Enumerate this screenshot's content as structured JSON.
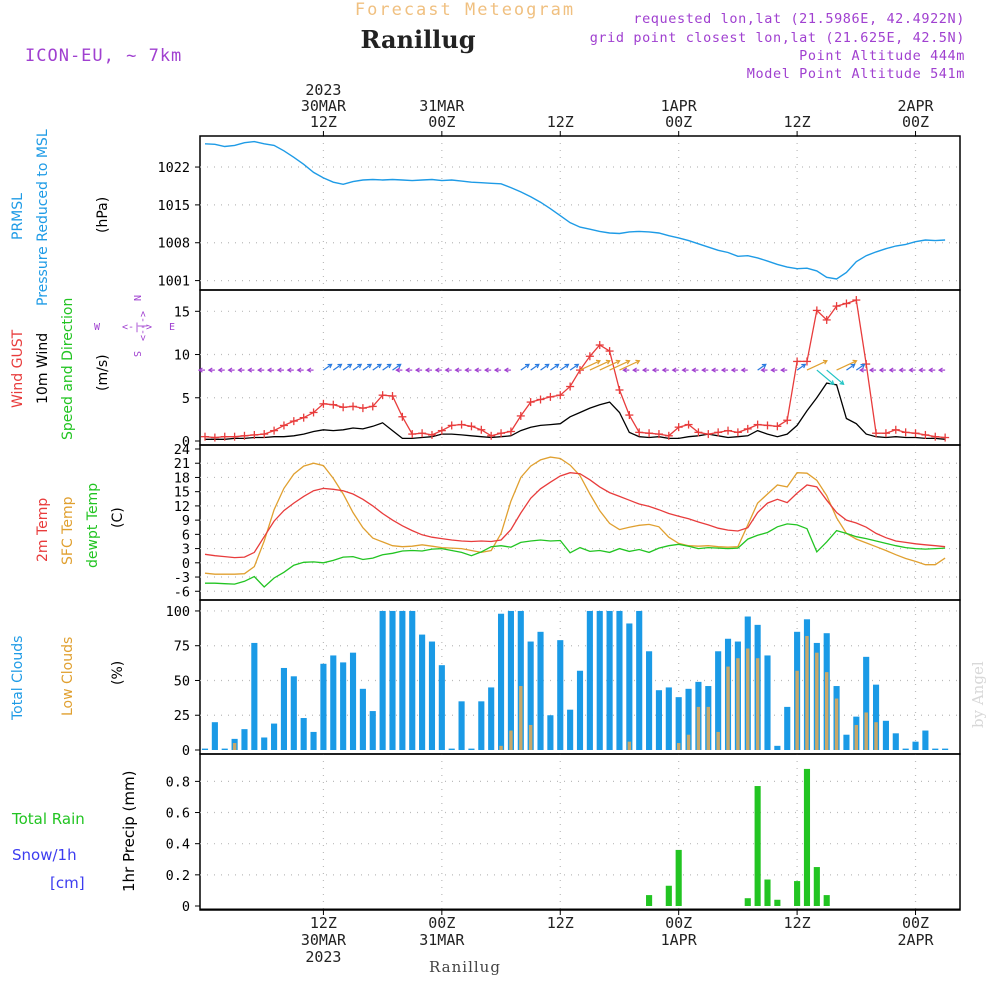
{
  "header": {
    "app_title": "Forecast Meteogram",
    "location": "Ranillug",
    "model": "ICON-EU, ~ 7km",
    "requested": "requested lon,lat (21.5986E, 42.4922N)",
    "grid_point": "grid point closest lon,lat (21.625E, 42.5N)",
    "point_altitude": "Point Altitude 444m",
    "model_altitude": "Model Point Altitude 541m",
    "watermark": "by Angel",
    "footer_location": "Ranillug"
  },
  "time_axis": {
    "top_labels": [
      {
        "t": 12,
        "lines": [
          "2023",
          "30MAR",
          "12Z"
        ]
      },
      {
        "t": 24,
        "lines": [
          "31MAR",
          "00Z"
        ]
      },
      {
        "t": 36,
        "lines": [
          "12Z"
        ]
      },
      {
        "t": 48,
        "lines": [
          "1APR",
          "00Z"
        ]
      },
      {
        "t": 60,
        "lines": [
          "12Z"
        ]
      },
      {
        "t": 72,
        "lines": [
          "2APR",
          "00Z"
        ]
      }
    ],
    "bottom_labels": [
      {
        "t": 12,
        "lines": [
          "12Z",
          "30MAR",
          "2023"
        ]
      },
      {
        "t": 24,
        "lines": [
          "00Z",
          "31MAR"
        ]
      },
      {
        "t": 36,
        "lines": [
          "12Z"
        ]
      },
      {
        "t": 48,
        "lines": [
          "00Z",
          "1APR"
        ]
      },
      {
        "t": 60,
        "lines": [
          "12Z"
        ]
      },
      {
        "t": 72,
        "lines": [
          "00Z",
          "2APR"
        ]
      }
    ]
  },
  "panels": {
    "pressure": {
      "label_main": "PRMSL",
      "label_sub": "Pressure Reduced to MSL",
      "unit": "(hPa)",
      "ticks": [
        "1001",
        "1008",
        "1015",
        "1022"
      ]
    },
    "wind": {
      "label_gust": "Wind GUST",
      "label_wind": "10m Wind",
      "label_dir": "Speed and Direction",
      "unit": "(m/s)",
      "compass_n": "N",
      "compass_e": "E",
      "compass_s": "S",
      "compass_w": "W",
      "ticks": [
        "0",
        "5",
        "10",
        "15"
      ]
    },
    "temp": {
      "label_2m": "2m Temp",
      "label_sfc": "SFC Temp",
      "label_dew": "dewpt Temp",
      "unit": "(C)",
      "ticks": [
        "-6",
        "-3",
        "0",
        "3",
        "6",
        "9",
        "12",
        "15",
        "18",
        "21",
        "24"
      ]
    },
    "clouds": {
      "label_total": "Total Clouds",
      "label_low": "Low Clouds",
      "unit": "(%)",
      "ticks": [
        "0",
        "25",
        "50",
        "75",
        "100"
      ]
    },
    "precip": {
      "label_rain": "Total   Rain",
      "label_snow": "Snow/1h",
      "label_snow_unit": "[cm]",
      "label_axis": "1hr Precip (mm)",
      "ticks": [
        "0",
        "0.2",
        "0.4",
        "0.6",
        "0.8"
      ]
    }
  },
  "colors": {
    "pressure": "#1e9be6",
    "gust": "#e83c3c",
    "wind": "#000000",
    "temp2m": "#e83c3c",
    "sfc": "#e0a030",
    "dew": "#22c422",
    "total_clouds": "#1a9ae6",
    "low_clouds": "#c8a86a",
    "rain": "#22c422",
    "snow": "#3c3cf0",
    "purple": "#a040d0",
    "title_orange": "#f0c080"
  },
  "chart_data": {
    "type": "line",
    "x_unit": "hours since 30MAR 00Z",
    "x": [
      0,
      1,
      2,
      3,
      4,
      5,
      6,
      7,
      8,
      9,
      10,
      11,
      12,
      13,
      14,
      15,
      16,
      17,
      18,
      19,
      20,
      21,
      22,
      23,
      24,
      25,
      26,
      27,
      28,
      29,
      30,
      31,
      32,
      33,
      34,
      35,
      36,
      37,
      38,
      39,
      40,
      41,
      42,
      43,
      44,
      45,
      46,
      47,
      48,
      49,
      50,
      51,
      52,
      53,
      54,
      55,
      56,
      57,
      58,
      59,
      60,
      61,
      62,
      63,
      64,
      65,
      66,
      67,
      68,
      69,
      70,
      71,
      72,
      73,
      74,
      75
    ],
    "xlim": [
      0,
      76
    ],
    "pressure": {
      "ylim": [
        1000,
        1027
      ],
      "values": [
        1026.3,
        1026.2,
        1025.8,
        1026,
        1026.5,
        1026.7,
        1026.3,
        1026,
        1025,
        1023.8,
        1022.5,
        1021,
        1020,
        1019.2,
        1018.8,
        1019.3,
        1019.6,
        1019.7,
        1019.6,
        1019.7,
        1019.6,
        1019.5,
        1019.6,
        1019.7,
        1019.5,
        1019.6,
        1019.4,
        1019.2,
        1019.1,
        1019,
        1018.9,
        1018.2,
        1017.4,
        1016.5,
        1015.5,
        1014.3,
        1013,
        1011.7,
        1010.9,
        1010.5,
        1010.1,
        1009.8,
        1009.7,
        1010,
        1010.1,
        1010,
        1009.8,
        1009.3,
        1008.9,
        1008.4,
        1007.8,
        1007.2,
        1006.6,
        1006.2,
        1005.5,
        1005.6,
        1005.2,
        1004.6,
        1004,
        1003.5,
        1003.2,
        1003.3,
        1002.8,
        1001.6,
        1001.3,
        1002.5,
        1004.5,
        1005.6,
        1006.3,
        1006.9,
        1007.4,
        1007.7,
        1008.2,
        1008.5,
        1008.4,
        1008.5
      ],
      "gridlines": [
        1001,
        1008,
        1015,
        1022
      ]
    },
    "wind_speed": {
      "ylim": [
        0,
        17
      ],
      "values": [
        0.2,
        0.2,
        0.2,
        0.3,
        0.3,
        0.4,
        0.4,
        0.5,
        0.5,
        0.6,
        0.8,
        1.1,
        1.3,
        1.2,
        1.3,
        1.5,
        1.4,
        1.7,
        2.1,
        1.2,
        0.3,
        0.3,
        0.4,
        0.5,
        0.8,
        0.8,
        0.7,
        0.6,
        0.5,
        0.4,
        0.5,
        0.6,
        1.2,
        1.6,
        1.8,
        1.9,
        2.0,
        2.8,
        3.3,
        3.8,
        4.2,
        4.5,
        3.3,
        1.0,
        0.5,
        0.4,
        0.5,
        0.3,
        0.3,
        0.5,
        0.6,
        0.8,
        0.6,
        0.4,
        0.5,
        0.6,
        1.2,
        0.8,
        0.5,
        0.8,
        1.8,
        3.5,
        5.0,
        6.7,
        6.5,
        2.6,
        2.0,
        0.8,
        0.5,
        0.4,
        0.5,
        0.4,
        0.4,
        0.3,
        0.3,
        0.2
      ]
    },
    "gust": {
      "values": [
        0.5,
        0.4,
        0.5,
        0.5,
        0.6,
        0.7,
        0.8,
        1.2,
        1.8,
        2.3,
        2.7,
        3.3,
        4.3,
        4.2,
        3.9,
        4.0,
        3.8,
        4.0,
        5.3,
        5.2,
        2.8,
        0.8,
        0.9,
        0.7,
        1.2,
        1.8,
        1.9,
        1.7,
        1.3,
        0.6,
        0.9,
        1.1,
        2.9,
        4.5,
        4.8,
        5.1,
        5.3,
        6.3,
        8.2,
        9.8,
        11.1,
        10.4,
        5.9,
        3.0,
        1.0,
        0.9,
        0.8,
        0.6,
        1.6,
        1.9,
        1.0,
        0.8,
        1.0,
        1.2,
        1.0,
        1.4,
        1.9,
        1.8,
        1.7,
        2.4,
        9.2,
        9.2,
        15.1,
        14.0,
        15.6,
        15.9,
        16.3,
        8.9,
        0.9,
        0.9,
        1.3,
        1.0,
        0.9,
        0.7,
        0.5,
        0.4
      ]
    },
    "wind_dir_row": {
      "y": 8.2,
      "note": "wind direction arrows"
    },
    "temperature": {
      "ylim": [
        -7,
        24
      ],
      "t2m": [
        1.8,
        1.5,
        1.3,
        1.1,
        1.2,
        2.2,
        5.5,
        8.8,
        11,
        12.6,
        14,
        15.2,
        15.7,
        15.5,
        15.2,
        14.5,
        13.4,
        12,
        10.4,
        9,
        7.8,
        6.8,
        5.9,
        5.4,
        5.1,
        4.8,
        4.6,
        4.5,
        4.6,
        4.5,
        4.8,
        7.0,
        10.5,
        13.6,
        15.6,
        17,
        18.3,
        19,
        18.8,
        17.5,
        16,
        14.8,
        14,
        13.2,
        12.4,
        11.9,
        11.2,
        10.4,
        9.8,
        9.3,
        8.6,
        8.0,
        7.3,
        6.9,
        6.7,
        7.4,
        10.6,
        12.6,
        13.4,
        12.7,
        14.7,
        16.4,
        16,
        13.2,
        10.6,
        9.0,
        8.4,
        7.5,
        6.2,
        5.3,
        4.6,
        4.3,
        4.0,
        3.8,
        3.6,
        3.4
      ],
      "sfc": [
        -2.2,
        -2.4,
        -2.4,
        -2.4,
        -2.3,
        -0.8,
        4.6,
        11.2,
        15.7,
        18.7,
        20.4,
        21.0,
        20.5,
        17.8,
        14.5,
        10.6,
        7.4,
        5.2,
        4.4,
        3.6,
        3.4,
        3.5,
        3.8,
        3.5,
        3.2,
        3.1,
        3.0,
        2.6,
        2.2,
        2.6,
        6.2,
        13.0,
        18.0,
        20.4,
        21.7,
        22.3,
        22.0,
        20.6,
        18.4,
        14.5,
        11.0,
        8.3,
        7.0,
        7.5,
        7.9,
        8.1,
        7.6,
        5.4,
        4.1,
        3.6,
        3.5,
        3.6,
        3.4,
        3.3,
        3.4,
        8.0,
        12.6,
        14.5,
        16.4,
        16.0,
        19.0,
        18.9,
        17.4,
        14.2,
        9.5,
        6.2,
        5.0,
        4.2,
        3.4,
        2.6,
        1.7,
        0.9,
        0.3,
        -0.4,
        -0.4,
        1.0
      ],
      "dew": [
        -4.3,
        -4.3,
        -4.4,
        -4.5,
        -3.9,
        -2.9,
        -5.1,
        -3.2,
        -2.0,
        -0.5,
        0.1,
        0.2,
        0.0,
        0.5,
        1.2,
        1.3,
        0.7,
        1.0,
        1.7,
        2.0,
        2.5,
        2.6,
        2.5,
        2.9,
        3.0,
        2.6,
        2.2,
        1.5,
        2.3,
        3.4,
        3.6,
        3.3,
        4.3,
        4.6,
        4.8,
        4.6,
        4.7,
        2.1,
        3.2,
        2.4,
        2.6,
        2.2,
        3.0,
        2.4,
        2.8,
        2.2,
        3.1,
        3.6,
        3.9,
        3.5,
        3.0,
        3.2,
        3.1,
        3.0,
        3.1,
        5.0,
        5.8,
        6.4,
        7.6,
        8.2,
        8.0,
        7.2,
        2.3,
        4.4,
        6.8,
        6.2,
        5.5,
        5.1,
        4.6,
        4.1,
        3.6,
        3.2,
        3.0,
        2.9,
        3.0,
        3.1
      ]
    },
    "clouds": {
      "ylim": [
        0,
        105
      ],
      "total": [
        1,
        20,
        1,
        8,
        15,
        77,
        9,
        19,
        59,
        53,
        23,
        13,
        62,
        68,
        63,
        70,
        44,
        28,
        100,
        100,
        100,
        100,
        83,
        78,
        61,
        1,
        35,
        1,
        35,
        45,
        98,
        100,
        100,
        78,
        85,
        25,
        79,
        29,
        57,
        100,
        100,
        100,
        100,
        91,
        100,
        71,
        43,
        45,
        38,
        44,
        49,
        46,
        71,
        80,
        78,
        96,
        90,
        68,
        3,
        31,
        85,
        94,
        77,
        84,
        46,
        11,
        24,
        67,
        47,
        21,
        12,
        1,
        6,
        14,
        1,
        1
      ],
      "low": [
        0,
        0,
        0,
        5,
        0,
        0,
        0,
        0,
        0,
        0,
        0,
        0,
        0,
        0,
        0,
        0,
        0,
        0,
        0,
        0,
        0,
        0,
        0,
        0,
        0,
        0,
        0,
        0,
        0,
        0,
        3,
        14,
        46,
        18,
        0,
        0,
        0,
        0,
        0,
        0,
        0,
        0,
        0,
        6,
        0,
        0,
        0,
        0,
        5,
        11,
        31,
        31,
        13,
        60,
        66,
        73,
        66,
        0,
        0,
        0,
        57,
        82,
        70,
        56,
        37,
        0,
        18,
        27,
        20,
        0,
        0,
        0,
        0,
        0,
        0,
        0
      ]
    },
    "precip": {
      "ylim": [
        0,
        0.95
      ],
      "rain": [
        0,
        0,
        0,
        0,
        0,
        0,
        0,
        0,
        0,
        0,
        0,
        0,
        0,
        0,
        0,
        0,
        0,
        0,
        0,
        0,
        0,
        0,
        0,
        0,
        0,
        0,
        0,
        0,
        0,
        0,
        0,
        0,
        0,
        0,
        0,
        0,
        0,
        0,
        0,
        0,
        0,
        0,
        0,
        0,
        0,
        0.07,
        0,
        0.13,
        0.36,
        0,
        0,
        0,
        0,
        0,
        0,
        0.05,
        0.77,
        0.17,
        0.04,
        0,
        0.16,
        0.88,
        0.25,
        0.07,
        0,
        0,
        0,
        0,
        0,
        0,
        0,
        0,
        0,
        0,
        0,
        0
      ]
    }
  }
}
